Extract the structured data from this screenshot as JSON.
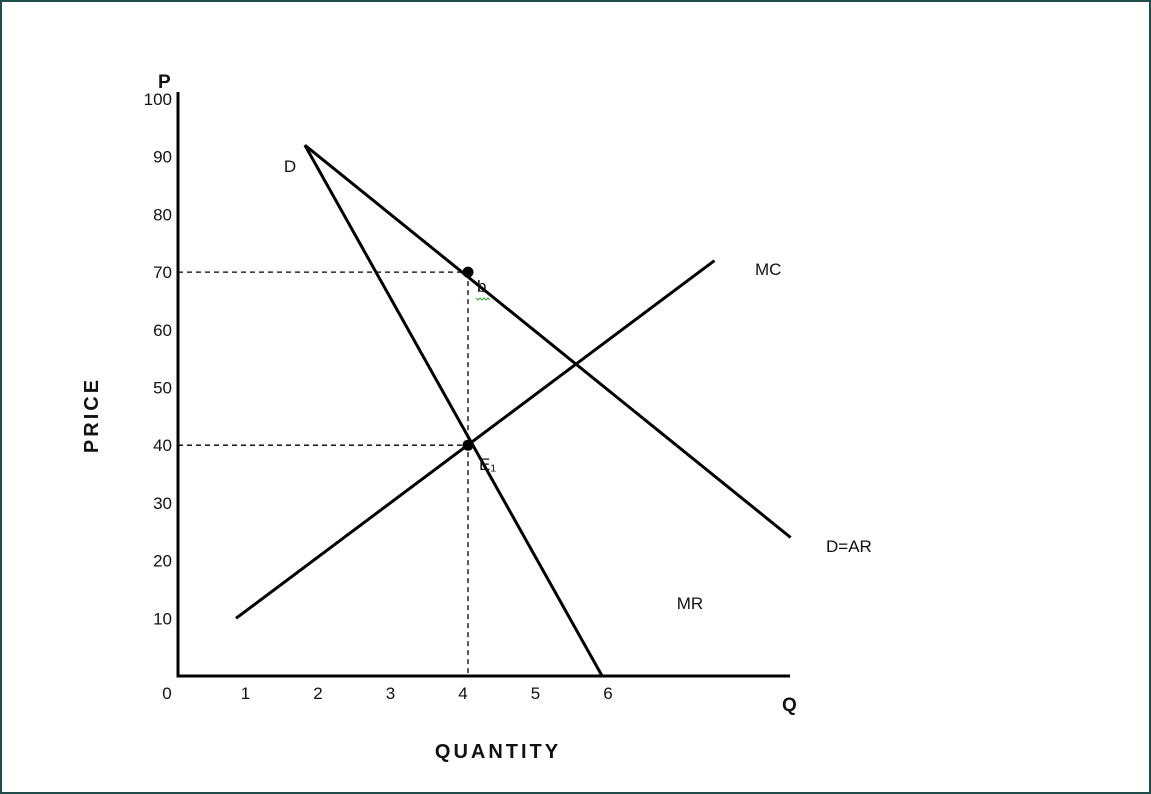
{
  "colors": {
    "frame": "#1e4d4a",
    "ink": "#000000",
    "squiggle": "#3aa53a"
  },
  "chart_data": {
    "type": "line",
    "xlabel": "QUANTITY",
    "ylabel": "PRICE",
    "x_axis_end_label": "Q",
    "y_axis_end_label": "P",
    "origin_label": "0",
    "xlim": [
      0,
      8
    ],
    "ylim": [
      0,
      105
    ],
    "x_ticks": [
      "1",
      "2",
      "3",
      "4",
      "5",
      "6"
    ],
    "y_ticks": [
      "10",
      "20",
      "30",
      "40",
      "50",
      "60",
      "70",
      "80",
      "90",
      "100"
    ],
    "grid": false,
    "series": [
      {
        "name": "D=AR",
        "start_label": "D",
        "points": [
          [
            1.75,
            92
          ],
          [
            8.45,
            24
          ]
        ]
      },
      {
        "name": "MR",
        "points": [
          [
            1.75,
            92
          ],
          [
            5.85,
            0
          ]
        ]
      },
      {
        "name": "MC",
        "points": [
          [
            0.8,
            10
          ],
          [
            7.4,
            72
          ]
        ]
      }
    ],
    "points": [
      {
        "label": "b",
        "x": 4,
        "y": 70
      },
      {
        "label": "E₁",
        "x": 4,
        "y": 40
      }
    ],
    "guides": [
      {
        "from": [
          0,
          70
        ],
        "to": [
          4,
          70
        ]
      },
      {
        "from": [
          0,
          40
        ],
        "to": [
          4,
          40
        ]
      },
      {
        "from": [
          4,
          70
        ],
        "to": [
          4,
          0
        ]
      }
    ]
  }
}
